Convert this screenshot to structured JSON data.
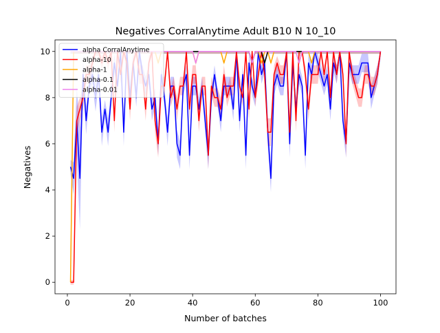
{
  "chart_data": {
    "type": "line",
    "title": "Negatives CorralAnytime Adult B10 N 10_10",
    "xlabel": "Number of batches",
    "ylabel": "Negatives",
    "xlim": [
      -3.95,
      104.95
    ],
    "ylim": [
      -0.5,
      10.5
    ],
    "x_ticks": [
      0,
      20,
      40,
      60,
      80,
      100
    ],
    "y_ticks": [
      0,
      2,
      4,
      6,
      8,
      10
    ],
    "grid": false,
    "legend_position": "top-left",
    "x": [
      1,
      2,
      3,
      4,
      5,
      6,
      7,
      8,
      9,
      10,
      11,
      12,
      13,
      14,
      15,
      16,
      17,
      18,
      19,
      20,
      21,
      22,
      23,
      24,
      25,
      26,
      27,
      28,
      29,
      30,
      31,
      32,
      33,
      34,
      35,
      36,
      37,
      38,
      39,
      40,
      41,
      42,
      43,
      44,
      45,
      46,
      47,
      48,
      49,
      50,
      51,
      52,
      53,
      54,
      55,
      56,
      57,
      58,
      59,
      60,
      61,
      62,
      63,
      64,
      65,
      66,
      67,
      68,
      69,
      70,
      71,
      72,
      73,
      74,
      75,
      76,
      77,
      78,
      79,
      80,
      81,
      82,
      83,
      84,
      85,
      86,
      87,
      88,
      89,
      90,
      91,
      92,
      93,
      94,
      95,
      96,
      97,
      98,
      99,
      100
    ],
    "series": [
      {
        "name": "alpha CorralAnytime",
        "color": "#0000ff",
        "values": [
          5,
          4.5,
          7,
          4.5,
          9,
          7,
          8.5,
          9,
          8,
          9,
          6.5,
          7.5,
          6.5,
          8,
          9.5,
          8.5,
          10,
          6.5,
          10,
          8,
          9.5,
          8,
          10,
          9,
          8.5,
          9,
          7.5,
          8,
          6,
          9,
          8,
          6.5,
          8.5,
          8.5,
          6,
          5.5,
          8.5,
          9,
          5.5,
          8.5,
          8.5,
          7.5,
          8.5,
          7,
          5.5,
          8,
          9,
          8,
          7,
          8.5,
          8.5,
          8.5,
          7.5,
          10,
          7,
          9,
          5.5,
          9.5,
          8.5,
          8,
          10,
          9,
          9.5,
          6.5,
          4.5,
          8.5,
          9,
          8.5,
          8.5,
          10,
          6,
          9.5,
          7.5,
          9,
          8.5,
          5.5,
          9.5,
          9,
          10,
          9.5,
          9,
          8.5,
          9,
          7.5,
          9.5,
          9,
          10,
          7,
          6,
          9.5,
          9,
          9,
          9,
          9.5,
          9.5,
          9.5,
          8,
          8.5,
          9,
          10
        ],
        "band": [
          0.3,
          0.7,
          1.5,
          2.2,
          0.6,
          0.6,
          0.4,
          0.4,
          0.6,
          0.4,
          0.6,
          0.4,
          0.6,
          0.4,
          0.4,
          0.4,
          0.3,
          0.6,
          0.3,
          0.4,
          0.4,
          0.4,
          0.3,
          0.4,
          0.4,
          0.4,
          0.5,
          0.4,
          0.5,
          0.4,
          0.4,
          0.6,
          0.4,
          0.4,
          0.6,
          0.6,
          0.4,
          0.4,
          0.6,
          0.4,
          0.4,
          0.5,
          0.4,
          0.5,
          0.6,
          0.4,
          0.4,
          0.4,
          0.5,
          0.4,
          0.4,
          0.4,
          0.5,
          0.3,
          0.5,
          0.4,
          0.6,
          0.4,
          0.4,
          0.4,
          0.3,
          0.4,
          0.4,
          0.6,
          0.6,
          0.4,
          0.4,
          0.4,
          0.4,
          0.3,
          0.6,
          0.4,
          0.5,
          0.4,
          0.4,
          0.6,
          0.4,
          0.4,
          0.3,
          0.4,
          0.4,
          0.4,
          0.4,
          0.5,
          0.4,
          0.4,
          0.3,
          0.5,
          0.6,
          0.4,
          0.4,
          0.4,
          0.4,
          0.4,
          0.4,
          0.4,
          0.5,
          0.4,
          0.4,
          0.3
        ]
      },
      {
        "name": "alpha-10",
        "color": "#ff0000",
        "values": [
          0,
          0,
          7,
          7.5,
          8,
          9,
          9,
          9.5,
          10,
          10,
          9.5,
          10,
          9.5,
          10,
          7,
          10,
          9,
          10,
          9.5,
          7.5,
          9.5,
          10,
          9,
          9,
          7.5,
          9.5,
          10,
          7,
          6,
          8.5,
          8.5,
          10,
          8,
          8.5,
          7.5,
          8.5,
          8.5,
          10,
          7.5,
          9,
          9,
          7,
          8.5,
          8.5,
          5.5,
          8.5,
          8,
          8,
          7.5,
          9,
          8,
          8.5,
          8.5,
          10,
          8.5,
          8,
          10,
          7.5,
          10,
          8,
          9,
          10,
          9,
          6.5,
          6.5,
          9,
          9.5,
          9,
          9,
          10,
          6.5,
          10,
          7,
          10,
          10,
          9,
          7.5,
          9,
          9,
          9,
          10,
          9,
          10,
          8,
          10,
          9,
          10,
          9,
          6,
          10,
          9,
          8.5,
          8,
          8,
          9,
          9,
          8.5,
          8.5,
          9,
          10
        ],
        "band": [
          0.1,
          0.1,
          0.6,
          0.5,
          0.5,
          0.4,
          0.4,
          0.3,
          0.2,
          0.2,
          0.3,
          0.2,
          0.3,
          0.2,
          0.5,
          0.2,
          0.4,
          0.2,
          0.3,
          0.5,
          0.3,
          0.2,
          0.4,
          0.4,
          0.5,
          0.3,
          0.2,
          0.5,
          0.6,
          0.4,
          0.4,
          0.2,
          0.4,
          0.4,
          0.5,
          0.4,
          0.4,
          0.2,
          0.5,
          0.4,
          0.4,
          0.5,
          0.4,
          0.4,
          0.6,
          0.4,
          0.4,
          0.4,
          0.5,
          0.4,
          0.4,
          0.4,
          0.4,
          0.2,
          0.4,
          0.4,
          0.2,
          0.5,
          0.2,
          0.4,
          0.4,
          0.2,
          0.4,
          0.6,
          0.6,
          0.4,
          0.3,
          0.4,
          0.4,
          0.2,
          0.6,
          0.2,
          0.5,
          0.2,
          0.2,
          0.4,
          0.5,
          0.4,
          0.4,
          0.4,
          0.2,
          0.4,
          0.2,
          0.4,
          0.2,
          0.4,
          0.2,
          0.4,
          0.6,
          0.2,
          0.4,
          0.4,
          0.4,
          0.4,
          0.4,
          0.4,
          0.4,
          0.4,
          0.4,
          0.1
        ]
      },
      {
        "name": "alpha-1",
        "color": "#ffa500",
        "values": [
          0,
          10,
          10,
          10,
          10,
          10,
          10,
          10,
          10,
          10,
          10,
          10,
          10,
          10,
          10,
          10,
          10,
          10,
          10,
          10,
          10,
          10,
          10,
          10,
          10,
          10,
          10,
          10,
          9.5,
          10,
          10,
          10,
          10,
          10,
          10,
          10,
          10,
          10,
          10,
          10,
          9.5,
          10,
          10,
          10,
          10,
          10,
          10,
          10,
          10,
          9.5,
          10,
          10,
          10,
          10,
          10,
          10,
          10,
          10,
          9.5,
          10,
          10,
          9.5,
          10,
          10,
          9.5,
          10,
          10,
          10,
          10,
          10,
          10,
          10,
          10,
          9.5,
          10,
          10,
          10,
          9.5,
          10,
          10,
          10,
          10,
          10,
          10,
          10,
          10,
          10,
          10,
          10,
          10,
          10,
          10,
          10,
          10,
          10,
          10,
          10,
          10,
          10,
          10
        ],
        "band": [
          0.1,
          0.1,
          0.1,
          0.1,
          0.1,
          0.1,
          0.1,
          0.1,
          0.1,
          0.1,
          0.1,
          0.1,
          0.1,
          0.1,
          0.1,
          0.1,
          0.1,
          0.1,
          0.1,
          0.1,
          0.1,
          0.1,
          0.1,
          0.1,
          0.1,
          0.1,
          0.1,
          0.1,
          0.1,
          0.1,
          0.1,
          0.1,
          0.1,
          0.1,
          0.1,
          0.1,
          0.1,
          0.1,
          0.1,
          0.1,
          0.1,
          0.1,
          0.1,
          0.1,
          0.1,
          0.1,
          0.1,
          0.1,
          0.1,
          0.1,
          0.1,
          0.1,
          0.1,
          0.1,
          0.1,
          0.1,
          0.1,
          0.1,
          0.1,
          0.1,
          0.1,
          0.1,
          0.1,
          0.1,
          0.1,
          0.1,
          0.1,
          0.1,
          0.1,
          0.1,
          0.1,
          0.1,
          0.1,
          0.1,
          0.1,
          0.1,
          0.1,
          0.1,
          0.1,
          0.1,
          0.1,
          0.1,
          0.1,
          0.1,
          0.1,
          0.1,
          0.1,
          0.1,
          0.1,
          0.1,
          0.1,
          0.1,
          0.1,
          0.1,
          0.1,
          0.1,
          0.1,
          0.1,
          0.1,
          0.1
        ]
      },
      {
        "name": "alpha-0.1",
        "color": "#000000",
        "values": [
          10,
          10,
          10,
          10,
          10,
          10,
          10,
          10,
          10,
          10,
          10,
          10,
          10,
          10,
          10,
          10,
          10,
          10,
          10,
          10,
          10,
          10,
          10,
          10,
          10,
          10,
          10,
          10,
          10,
          10,
          10,
          10,
          10,
          10,
          10,
          10,
          10,
          10,
          10,
          10,
          10,
          10,
          10,
          10,
          10,
          10,
          10,
          10,
          10,
          10,
          10,
          10,
          10,
          10,
          10,
          10,
          10,
          10,
          9.5,
          10,
          10,
          10,
          9.5,
          10,
          10,
          10,
          10,
          10,
          10,
          10,
          10,
          10,
          10,
          10,
          10,
          10,
          10,
          10,
          10,
          10,
          10,
          10,
          10,
          10,
          10,
          10,
          10,
          10,
          10,
          10,
          10,
          10,
          10,
          10,
          10,
          10,
          10,
          10,
          10,
          10
        ],
        "band": [
          0.1,
          0.1,
          0.1,
          0.1,
          0.1,
          0.1,
          0.1,
          0.1,
          0.1,
          0.1,
          0.1,
          0.1,
          0.1,
          0.1,
          0.1,
          0.1,
          0.1,
          0.1,
          0.1,
          0.1,
          0.1,
          0.1,
          0.1,
          0.1,
          0.1,
          0.1,
          0.1,
          0.1,
          0.1,
          0.1,
          0.1,
          0.1,
          0.1,
          0.1,
          0.1,
          0.1,
          0.1,
          0.1,
          0.1,
          0.1,
          0.1,
          0.1,
          0.1,
          0.1,
          0.1,
          0.1,
          0.1,
          0.1,
          0.1,
          0.1,
          0.1,
          0.1,
          0.1,
          0.1,
          0.1,
          0.1,
          0.1,
          0.1,
          0.1,
          0.1,
          0.1,
          0.1,
          0.1,
          0.1,
          0.1,
          0.1,
          0.1,
          0.1,
          0.1,
          0.1,
          0.1,
          0.1,
          0.1,
          0.1,
          0.1,
          0.1,
          0.1,
          0.1,
          0.1,
          0.1,
          0.1,
          0.1,
          0.1,
          0.1,
          0.1,
          0.1,
          0.1,
          0.1,
          0.1,
          0.1,
          0.1,
          0.1,
          0.1,
          0.1,
          0.1,
          0.1,
          0.1,
          0.1,
          0.1,
          0.1
        ]
      },
      {
        "name": "alpha-0.01",
        "color": "#ee82ee",
        "values": [
          10,
          10,
          10,
          10,
          10,
          10,
          10,
          10,
          10,
          10,
          10,
          10,
          10,
          10,
          10,
          10,
          10,
          10,
          10,
          10,
          10,
          10,
          10,
          10,
          10,
          10,
          10,
          10,
          10,
          10,
          10,
          10,
          10,
          10,
          10,
          10,
          10,
          10,
          10,
          10,
          9.5,
          10,
          10,
          10,
          10,
          10,
          10,
          10,
          10,
          10,
          10,
          10,
          10,
          10,
          10,
          10,
          10,
          10,
          9.5,
          10,
          10,
          10,
          10,
          10,
          10,
          10,
          10,
          10,
          10,
          10,
          10,
          10,
          10,
          9.5,
          10,
          10,
          10,
          10,
          10,
          10,
          10,
          10,
          10,
          10,
          10,
          10,
          10,
          10,
          10,
          10,
          10,
          10,
          10,
          10,
          10,
          10,
          10,
          10,
          10,
          10
        ],
        "band": [
          0.1,
          0.1,
          0.1,
          0.1,
          0.1,
          0.1,
          0.1,
          0.1,
          0.1,
          0.1,
          0.1,
          0.1,
          0.1,
          0.1,
          0.1,
          0.1,
          0.1,
          0.1,
          0.1,
          0.1,
          0.1,
          0.1,
          0.1,
          0.1,
          0.1,
          0.1,
          0.1,
          0.1,
          0.1,
          0.1,
          0.1,
          0.1,
          0.1,
          0.1,
          0.1,
          0.1,
          0.1,
          0.1,
          0.1,
          0.1,
          0.1,
          0.1,
          0.1,
          0.1,
          0.1,
          0.1,
          0.1,
          0.1,
          0.1,
          0.1,
          0.1,
          0.1,
          0.1,
          0.1,
          0.1,
          0.1,
          0.1,
          0.1,
          0.1,
          0.1,
          0.1,
          0.1,
          0.1,
          0.1,
          0.1,
          0.1,
          0.1,
          0.1,
          0.1,
          0.1,
          0.1,
          0.1,
          0.1,
          0.1,
          0.1,
          0.1,
          0.1,
          0.1,
          0.1,
          0.1,
          0.1,
          0.1,
          0.1,
          0.1,
          0.1,
          0.1,
          0.1,
          0.1,
          0.1,
          0.1,
          0.1,
          0.1,
          0.1,
          0.1,
          0.1,
          0.1,
          0.1,
          0.1,
          0.1,
          0.1
        ]
      }
    ]
  }
}
